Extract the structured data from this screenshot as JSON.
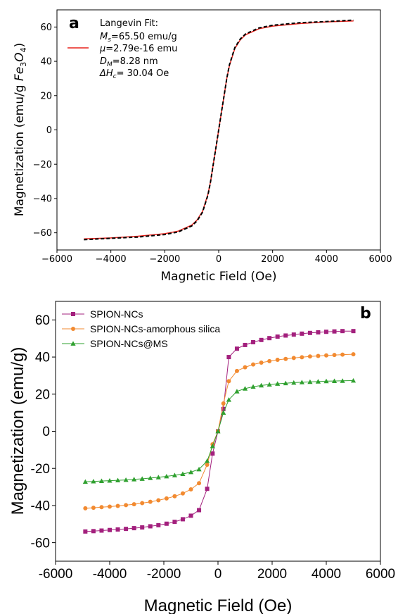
{
  "chart_data": [
    {
      "panel_label": "a",
      "type": "line",
      "xlabel": "Magnetic Field (Oe)",
      "ylabel": "Magnetization (emu/g ",
      "ylabel_formula": "Fe3O4)",
      "xlim": [
        -6000,
        6000
      ],
      "ylim": [
        -70,
        70
      ],
      "x_ticks": [
        "−6000",
        "−4000",
        "−2000",
        "0",
        "2000",
        "4000",
        "6000"
      ],
      "y_ticks": [
        "−60",
        "−40",
        "−20",
        "0",
        "20",
        "40",
        "60"
      ],
      "legend": {
        "title": "Langevin Fit:",
        "lines": [
          {
            "key": "M",
            "sub": "s",
            "text": "=65.50 emu/g"
          },
          {
            "key": "μ",
            "sub": "",
            "text": "=2.79e-16 emu"
          },
          {
            "key": "D",
            "sub": "M",
            "text": "=8.28 nm"
          },
          {
            "key": "ΔH",
            "sub": "c",
            "text": "= 30.04 Oe"
          }
        ],
        "placement": "top-left"
      },
      "series": [
        {
          "style": "dashed",
          "color": "#000000",
          "x": [
            -5000,
            -4000,
            -3000,
            -2000,
            -1500,
            -1000,
            -800,
            -600,
            -400,
            -300,
            -200,
            -100,
            0,
            100,
            200,
            300,
            400,
            600,
            800,
            1000,
            1500,
            2000,
            3000,
            4000,
            5000
          ],
          "y": [
            -64,
            -63.2,
            -62.5,
            -61,
            -59.5,
            -56,
            -53,
            -48,
            -38,
            -30,
            -20,
            -10,
            0,
            10,
            20,
            30,
            38,
            48,
            53,
            56,
            59.5,
            61,
            62.5,
            63.2,
            64
          ]
        },
        {
          "style": "solid",
          "color": "#e8221b",
          "x": [
            -5000,
            -4000,
            -3000,
            -2000,
            -1500,
            -1000,
            -800,
            -600,
            -400,
            -300,
            -200,
            -100,
            0,
            100,
            200,
            300,
            400,
            600,
            800,
            1000,
            1500,
            2000,
            3000,
            4000,
            5000
          ],
          "y": [
            -63.5,
            -63,
            -62,
            -60.5,
            -59,
            -55.5,
            -52.5,
            -47.5,
            -37.5,
            -30,
            -20,
            -10,
            0,
            10,
            20,
            30,
            37.5,
            47.5,
            52.5,
            55.5,
            59,
            60.5,
            62,
            63,
            63.5
          ]
        }
      ]
    },
    {
      "panel_label": "b",
      "type": "line",
      "xlabel": "Magnetic Field (Oe)",
      "ylabel": "Magnetization (emu/g)",
      "xlim": [
        -6000,
        6000
      ],
      "ylim": [
        -70,
        70
      ],
      "x_ticks": [
        "-6000",
        "-4000",
        "-2000",
        "0",
        "2000",
        "4000",
        "6000"
      ],
      "y_ticks": [
        "-60",
        "-40",
        "-20",
        "0",
        "20",
        "40",
        "60"
      ],
      "legend_placement": "top-left",
      "series": [
        {
          "name": "SPION-NCs",
          "color": "#a3207d",
          "marker": "square",
          "x": [
            -4900,
            -4600,
            -4300,
            -4000,
            -3700,
            -3400,
            -3100,
            -2800,
            -2500,
            -2200,
            -1900,
            -1600,
            -1300,
            -1000,
            -700,
            -400,
            -200,
            0,
            200,
            400,
            700,
            1000,
            1300,
            1600,
            1900,
            2200,
            2500,
            2800,
            3100,
            3400,
            3700,
            4000,
            4300,
            4600,
            5000
          ],
          "y": [
            -54,
            -53.8,
            -53.5,
            -53.2,
            -52.9,
            -52.6,
            -52.2,
            -51.8,
            -51.2,
            -50.6,
            -49.8,
            -48.8,
            -47.4,
            -45.5,
            -42.5,
            -31,
            -12,
            0,
            12,
            40,
            44.5,
            46.5,
            48,
            49.2,
            50.2,
            51,
            51.6,
            52.1,
            52.6,
            53,
            53.3,
            53.6,
            53.8,
            54,
            54
          ]
        },
        {
          "name": "SPION-NCs-amorphous silica",
          "color": "#f28a30",
          "marker": "circle",
          "x": [
            -4900,
            -4600,
            -4300,
            -4000,
            -3700,
            -3400,
            -3100,
            -2800,
            -2500,
            -2200,
            -1900,
            -1600,
            -1300,
            -1000,
            -700,
            -400,
            -200,
            0,
            200,
            400,
            700,
            1000,
            1300,
            1600,
            1900,
            2200,
            2500,
            2800,
            3100,
            3400,
            3700,
            4000,
            4300,
            4600,
            5000
          ],
          "y": [
            -41.5,
            -41.2,
            -40.9,
            -40.6,
            -40.2,
            -39.8,
            -39.3,
            -38.7,
            -38,
            -37.2,
            -36.2,
            -35,
            -33.5,
            -31.3,
            -28,
            -18,
            -7,
            0,
            15,
            27,
            32.5,
            34.5,
            36,
            37,
            37.8,
            38.5,
            39,
            39.5,
            39.9,
            40.3,
            40.6,
            40.9,
            41.1,
            41.3,
            41.5
          ]
        },
        {
          "name": "SPION-NCs@MS",
          "color": "#2fa02f",
          "marker": "triangle",
          "x": [
            -4900,
            -4600,
            -4300,
            -4000,
            -3700,
            -3400,
            -3100,
            -2800,
            -2500,
            -2200,
            -1900,
            -1600,
            -1300,
            -1000,
            -700,
            -400,
            -200,
            0,
            200,
            400,
            700,
            1000,
            1300,
            1600,
            1900,
            2200,
            2500,
            2800,
            3100,
            3400,
            3700,
            4000,
            4300,
            4600,
            5000
          ],
          "y": [
            -27.2,
            -27,
            -26.8,
            -26.6,
            -26.4,
            -26.2,
            -25.9,
            -25.6,
            -25.2,
            -24.8,
            -24.3,
            -23.7,
            -23,
            -22,
            -20.5,
            -16,
            -8,
            0,
            10,
            17,
            21.5,
            23,
            24,
            24.7,
            25.2,
            25.6,
            25.9,
            26.2,
            26.4,
            26.6,
            26.8,
            27,
            27.1,
            27.2,
            27.3
          ]
        }
      ]
    }
  ]
}
